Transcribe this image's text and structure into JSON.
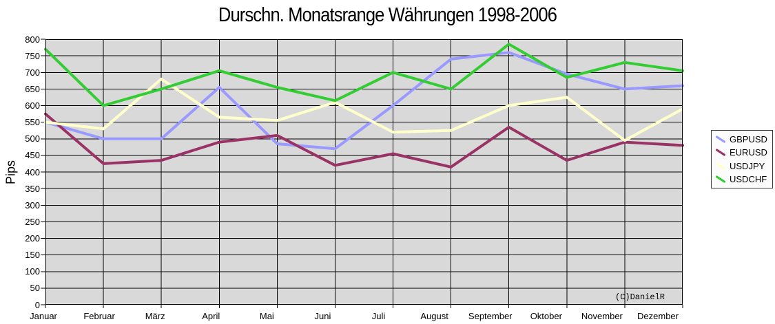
{
  "chart_data": {
    "type": "line",
    "title": "Durschn. Monatsrange Währungen 1998-2006",
    "ylabel": "Pips",
    "xlabel": "",
    "ylim": [
      0,
      800
    ],
    "ytick_step": 50,
    "grid": true,
    "legend_position": "right",
    "plot_bg_color": "#D9D9D9",
    "gridline_color": "#000000",
    "annotation": "(C)DanielR",
    "categories": [
      "Januar",
      "Februar",
      "März",
      "April",
      "Mai",
      "Juni",
      "Juli",
      "August",
      "September",
      "Oktober",
      "November",
      "Dezember"
    ],
    "series": [
      {
        "name": "GBPUSD",
        "color": "#9999FF",
        "values": [
          550,
          500,
          500,
          655,
          485,
          470,
          600,
          740,
          760,
          695,
          650,
          660
        ]
      },
      {
        "name": "EURUSD",
        "color": "#993366",
        "values": [
          575,
          425,
          435,
          490,
          510,
          420,
          455,
          415,
          535,
          435,
          490,
          480
        ]
      },
      {
        "name": "USDJPY",
        "color": "#FFFFCC",
        "values": [
          550,
          530,
          680,
          565,
          555,
          610,
          520,
          525,
          600,
          625,
          495,
          590
        ]
      },
      {
        "name": "USDCHF",
        "color": "#33CC33",
        "values": [
          770,
          600,
          650,
          705,
          655,
          615,
          700,
          650,
          785,
          685,
          730,
          705
        ]
      }
    ]
  }
}
